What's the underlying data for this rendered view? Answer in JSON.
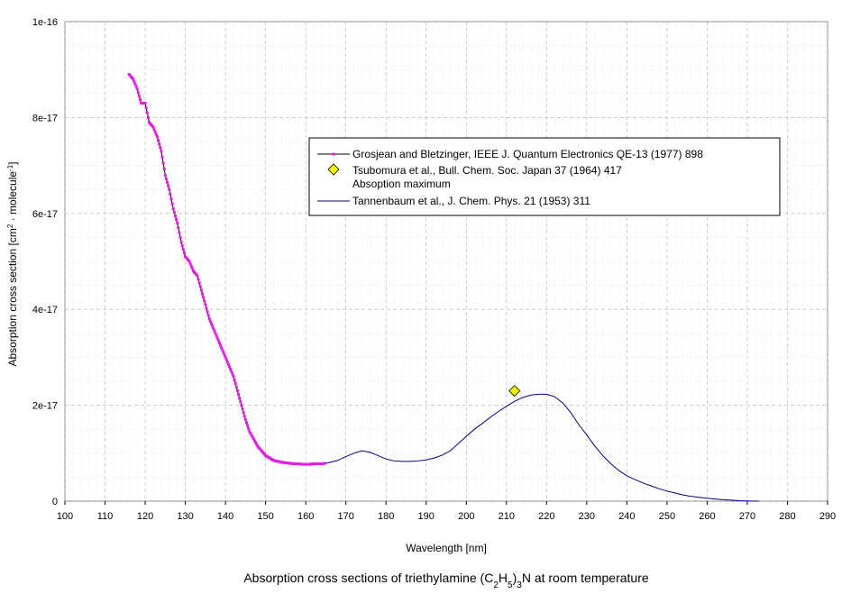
{
  "chart_data": {
    "type": "line",
    "caption_main": "Absorption cross sections of triethylamine (C",
    "caption_sub1": "2",
    "caption_mid1": "H",
    "caption_sub2": "5",
    "caption_mid2": ")",
    "caption_sub3": "3",
    "caption_end": "N at room temperature",
    "xlabel": "Wavelength [nm]",
    "ylabel_main": "Absorption cross section [cm",
    "ylabel_sup1": "2",
    "ylabel_mid": " · molecule",
    "ylabel_sup2": "-1",
    "ylabel_end": "]",
    "xlim": [
      100,
      290
    ],
    "ylim": [
      0,
      1e-16
    ],
    "xticks": [
      100,
      110,
      120,
      130,
      140,
      150,
      160,
      170,
      180,
      190,
      200,
      210,
      220,
      230,
      240,
      250,
      260,
      270,
      280,
      290
    ],
    "xtick_labels": [
      "100",
      "110",
      "120",
      "130",
      "140",
      "150",
      "160",
      "170",
      "180",
      "190",
      "200",
      "210",
      "220",
      "230",
      "240",
      "250",
      "260",
      "270",
      "280",
      "290"
    ],
    "yticks": [
      0,
      2e-17,
      4e-17,
      6e-17,
      8e-17,
      1e-16
    ],
    "ytick_labels": [
      "0",
      "2e-17",
      "4e-17",
      "6e-17",
      "8e-17",
      "1e-16"
    ],
    "grid": true,
    "legend_position": "top-right",
    "series": [
      {
        "name": "Grosjean and Bletzinger, IEEE J. Quantum Electronics QE-13 (1977) 898",
        "style": "line-markers",
        "color": "#e020e0",
        "line_color": "#000000",
        "x": [
          116,
          117,
          118,
          119,
          120,
          121,
          122,
          123,
          124,
          125,
          126,
          127,
          128,
          129,
          130,
          131,
          132,
          133,
          134,
          135,
          136,
          137,
          138,
          139,
          140,
          141,
          142,
          143,
          144,
          145,
          146,
          147,
          148,
          149,
          150,
          151,
          152,
          153,
          154,
          155,
          156,
          157,
          158,
          159,
          160,
          161,
          162,
          163,
          164,
          165
        ],
        "y": [
          8.9e-17,
          8.8e-17,
          8.6e-17,
          8.3e-17,
          8.3e-17,
          7.9e-17,
          7.8e-17,
          7.6e-17,
          7.3e-17,
          6.8e-17,
          6.5e-17,
          6.1e-17,
          5.8e-17,
          5.4e-17,
          5.1e-17,
          5e-17,
          4.8e-17,
          4.7e-17,
          4.4e-17,
          4.1e-17,
          3.8e-17,
          3.6e-17,
          3.4e-17,
          3.2e-17,
          3e-17,
          2.8e-17,
          2.6e-17,
          2.3e-17,
          2e-17,
          1.7e-17,
          1.45e-17,
          1.3e-17,
          1.15e-17,
          1.05e-17,
          9.5e-18,
          9e-18,
          8.5e-18,
          8.3e-18,
          8.1e-18,
          8e-18,
          7.9e-18,
          7.8e-18,
          7.8e-18,
          7.7e-18,
          7.7e-18,
          7.7e-18,
          7.8e-18,
          7.8e-18,
          7.8e-18,
          7.9e-18
        ]
      },
      {
        "name": "Tsubomura et al., Bull. Chem. Soc. Japan 37 (1964) 417",
        "name_line2": "Absoption maximum",
        "style": "marker",
        "color": "#f0f000",
        "x": [
          212
        ],
        "y": [
          2.3e-17
        ]
      },
      {
        "name": "Tannenbaum et al., J. Chem. Phys. 21 (1953) 311",
        "style": "line",
        "color": "#000080",
        "x": [
          165,
          168,
          170,
          172,
          174,
          176,
          178,
          180,
          182,
          184,
          186,
          188,
          190,
          192,
          194,
          196,
          198,
          200,
          202,
          204,
          206,
          208,
          210,
          212,
          214,
          216,
          218,
          220,
          222,
          224,
          226,
          228,
          230,
          232,
          234,
          236,
          238,
          240,
          242,
          244,
          246,
          248,
          250,
          252,
          254,
          256,
          258,
          260,
          262,
          264,
          266,
          268,
          270,
          272,
          273
        ],
        "y": [
          7.9e-18,
          8.5e-18,
          9.3e-18,
          1e-17,
          1.05e-17,
          1.02e-17,
          9.5e-18,
          8.8e-18,
          8.4e-18,
          8.3e-18,
          8.3e-18,
          8.4e-18,
          8.6e-18,
          9e-18,
          9.6e-18,
          1.05e-17,
          1.2e-17,
          1.35e-17,
          1.5e-17,
          1.62e-17,
          1.75e-17,
          1.87e-17,
          1.98e-17,
          2.08e-17,
          2.16e-17,
          2.21e-17,
          2.23e-17,
          2.23e-17,
          2.18e-17,
          2.05e-17,
          1.85e-17,
          1.6e-17,
          1.38e-17,
          1.15e-17,
          9.5e-18,
          7.8e-18,
          6.4e-18,
          5.3e-18,
          4.5e-18,
          3.8e-18,
          3.2e-18,
          2.6e-18,
          2.1e-18,
          1.7e-18,
          1.3e-18,
          1e-18,
          8e-19,
          6e-19,
          4.5e-19,
          3e-19,
          2e-19,
          1e-19,
          5e-20,
          1e-20,
          0
        ]
      }
    ]
  }
}
